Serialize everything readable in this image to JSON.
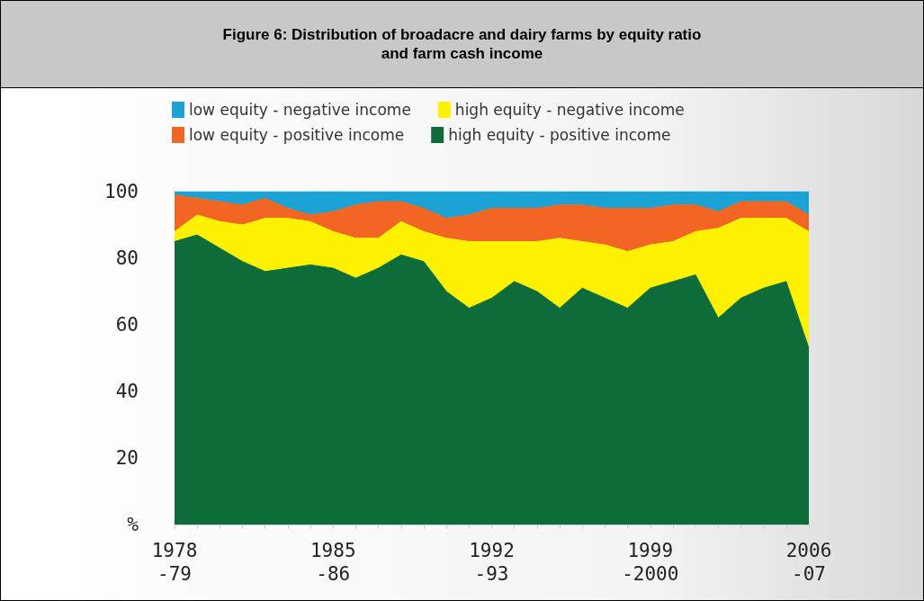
{
  "chart_data": {
    "type": "area",
    "title": "Figure 6: Distribution of broadacre and dairy farms by equity ratio and farm cash income",
    "stacked": true,
    "categories": [
      "1978\n-79",
      null,
      null,
      null,
      null,
      null,
      null,
      "1985\n-86",
      null,
      null,
      null,
      null,
      null,
      null,
      "1992\n-93",
      null,
      null,
      null,
      null,
      null,
      null,
      "1999\n-2000",
      null,
      null,
      null,
      null,
      null,
      null,
      "2006\n-07"
    ],
    "series": [
      {
        "name": "high equity - positive income",
        "color": "#0e6b3a",
        "values": [
          85,
          87,
          83,
          79,
          76,
          77,
          78,
          77,
          74,
          77,
          81,
          79,
          70,
          65,
          68,
          73,
          70,
          65,
          71,
          68,
          65,
          71,
          73,
          75,
          62,
          68,
          71,
          73,
          53
        ]
      },
      {
        "name": "high equity - negative income",
        "color": "#fff200",
        "values": [
          3,
          6,
          8,
          11,
          16,
          15,
          13,
          11,
          12,
          9,
          10,
          9,
          16,
          20,
          17,
          12,
          15,
          21,
          14,
          16,
          17,
          13,
          12,
          13,
          27,
          24,
          21,
          19,
          35
        ]
      },
      {
        "name": "low equity - positive income",
        "color": "#f26522",
        "values": [
          11,
          5,
          6,
          6,
          6,
          3,
          2,
          6,
          10,
          11,
          6,
          7,
          6,
          8,
          10,
          10,
          10,
          10,
          11,
          11,
          13,
          11,
          11,
          8,
          5,
          5,
          5,
          5,
          5
        ]
      },
      {
        "name": "low equity - negative income",
        "color": "#1ba3d6",
        "values": [
          1,
          2,
          3,
          4,
          2,
          5,
          7,
          6,
          4,
          3,
          3,
          5,
          8,
          7,
          5,
          5,
          5,
          4,
          4,
          5,
          5,
          5,
          4,
          4,
          6,
          3,
          3,
          3,
          7
        ]
      }
    ],
    "legend": "top left",
    "ylim": [
      0,
      100
    ],
    "yticks": [
      {
        "value": 0,
        "label": "%"
      },
      20,
      40,
      60,
      80,
      100
    ]
  }
}
